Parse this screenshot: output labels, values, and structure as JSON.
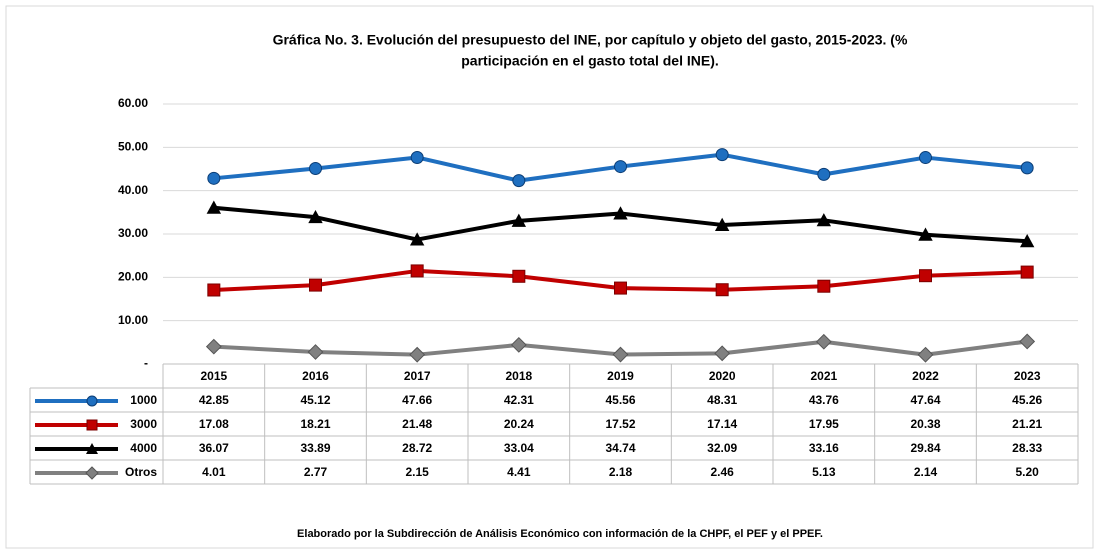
{
  "chart_data": {
    "type": "line",
    "title": [
      "Gráfica No. 3. Evolución del presupuesto del INE, por capítulo y objeto del gasto, 2015-2023. (%",
      "participación en el gasto total del INE)."
    ],
    "categories": [
      "2015",
      "2016",
      "2017",
      "2018",
      "2019",
      "2020",
      "2021",
      "2022",
      "2023"
    ],
    "series": [
      {
        "name": "1000",
        "color": "#1f6fc0",
        "marker": "circle",
        "values": [
          42.85,
          45.12,
          47.66,
          42.31,
          45.56,
          48.31,
          43.76,
          47.64,
          45.26
        ],
        "value_labels": [
          "42.85",
          "45.12",
          "47.66",
          "42.31",
          "45.56",
          "48.31",
          "43.76",
          "47.64",
          "45.26"
        ]
      },
      {
        "name": "3000",
        "color": "#c00000",
        "marker": "square",
        "values": [
          17.08,
          18.21,
          21.48,
          20.24,
          17.52,
          17.14,
          17.95,
          20.38,
          21.21
        ],
        "value_labels": [
          "17.08",
          "18.21",
          "21.48",
          "20.24",
          "17.52",
          "17.14",
          "17.95",
          "20.38",
          "21.21"
        ]
      },
      {
        "name": "4000",
        "color": "#000000",
        "marker": "triangle",
        "values": [
          36.07,
          33.89,
          28.72,
          33.04,
          34.74,
          32.09,
          33.16,
          29.84,
          28.33
        ],
        "value_labels": [
          "36.07",
          "33.89",
          "28.72",
          "33.04",
          "34.74",
          "32.09",
          "33.16",
          "29.84",
          "28.33"
        ]
      },
      {
        "name": "Otros",
        "color": "#808080",
        "marker": "diamond",
        "values": [
          4.01,
          2.77,
          2.15,
          4.41,
          2.18,
          2.46,
          5.13,
          2.14,
          5.2
        ],
        "value_labels": [
          "4.01",
          "2.77",
          "2.15",
          "4.41",
          "2.18",
          "2.46",
          "5.13",
          "2.14",
          "5.20"
        ]
      }
    ],
    "ylim": [
      0,
      60
    ],
    "yticks": [
      {
        "value": 0,
        "label": "-"
      },
      {
        "value": 10,
        "label": "10.00"
      },
      {
        "value": 20,
        "label": "20.00"
      },
      {
        "value": 30,
        "label": "30.00"
      },
      {
        "value": 40,
        "label": "40.00"
      },
      {
        "value": 50,
        "label": "50.00"
      },
      {
        "value": 60,
        "label": "60.00"
      }
    ],
    "grid": true,
    "note": "Elaborado por la Subdirección de Análisis Económico con información de la CHPF, el PEF y el PPEF."
  }
}
